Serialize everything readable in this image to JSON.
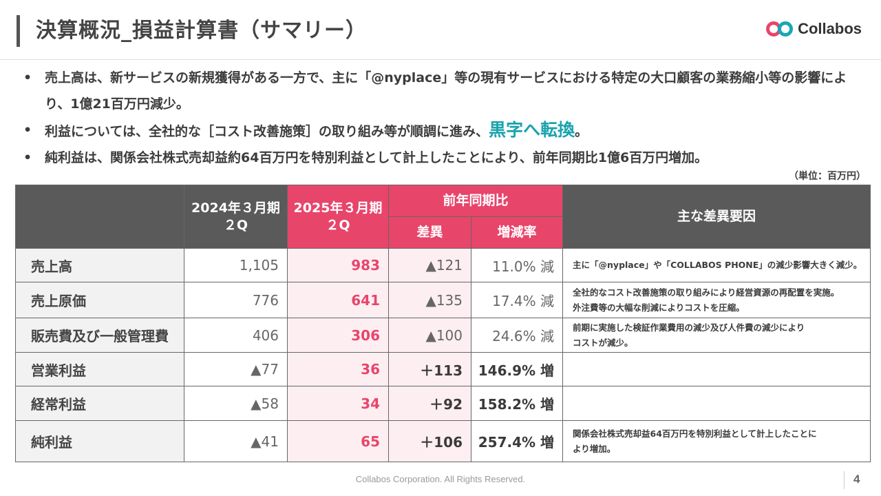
{
  "header": {
    "title": "決算概況_損益計算書（サマリー）",
    "logo_text": "Collabos"
  },
  "bullets": [
    "売上高は、新サービスの新規獲得がある一方で、主に「@nyplace」等の現有サービスにおける特定の大口顧客の業務縮小等の影響により、1億21百万円減少。",
    {
      "before": "利益については、全社的な［コスト改善施策］の取り組み等が順調に進み、",
      "highlight": "黒字へ転換",
      "after": "。"
    },
    "純利益は、関係会社株式売却益約64百万円を特別利益として計上したことにより、前年同期比1億6百万円増加。"
  ],
  "unit_note": "（単位：百万円）",
  "table": {
    "headers": {
      "prev": [
        "2024年３月期",
        "２Q"
      ],
      "curr": [
        "2025年３月期",
        "２Q"
      ],
      "yoy": "前年同期比",
      "diff": "差異",
      "rate": "増減率",
      "factors": "主な差異要因"
    },
    "rows": [
      {
        "label": "売上高",
        "prev": "1,105",
        "curr": "983",
        "diff": "▲121",
        "rate": "11.0% 減",
        "notes": [
          "主に「@nyplace」や「COLLABOS PHONE」の減少影響大きく減少。"
        ]
      },
      {
        "label": "売上原価",
        "prev": "776",
        "curr": "641",
        "diff": "▲135",
        "rate": "17.4% 減",
        "notes": [
          "全社的なコスト改善施策の取り組みにより経営資源の再配置を実施。",
          "外注費等の大幅な削減によりコストを圧縮。"
        ]
      },
      {
        "label": "販売費及び一般管理費",
        "prev": "406",
        "curr": "306",
        "diff": "▲100",
        "rate": "24.6% 減",
        "notes": [
          "前期に実施した検証作業費用の減少及び人件費の減少により",
          "コストが減少。"
        ]
      },
      {
        "label": "営業利益",
        "prev": "▲77",
        "curr": "36",
        "diff": "＋113",
        "rate": "146.9% 増",
        "notes": []
      },
      {
        "label": "経常利益",
        "prev": "▲58",
        "curr": "34",
        "diff": "＋92",
        "rate": "158.2% 増",
        "notes": []
      },
      {
        "label": "純利益",
        "prev": "▲41",
        "curr": "65",
        "diff": "＋106",
        "rate": "257.4% 増",
        "notes": [
          "関係会社株式売却益64百万円を特別利益として計上したことに",
          "より増加。"
        ]
      }
    ]
  },
  "footer": {
    "copyright": "Collabos Corporation. All Rights Reserved.",
    "page": "4"
  },
  "colors": {
    "accent_pink": "#e8456b",
    "accent_teal": "#1aa3ad",
    "header_gray": "#5a5a5a"
  }
}
